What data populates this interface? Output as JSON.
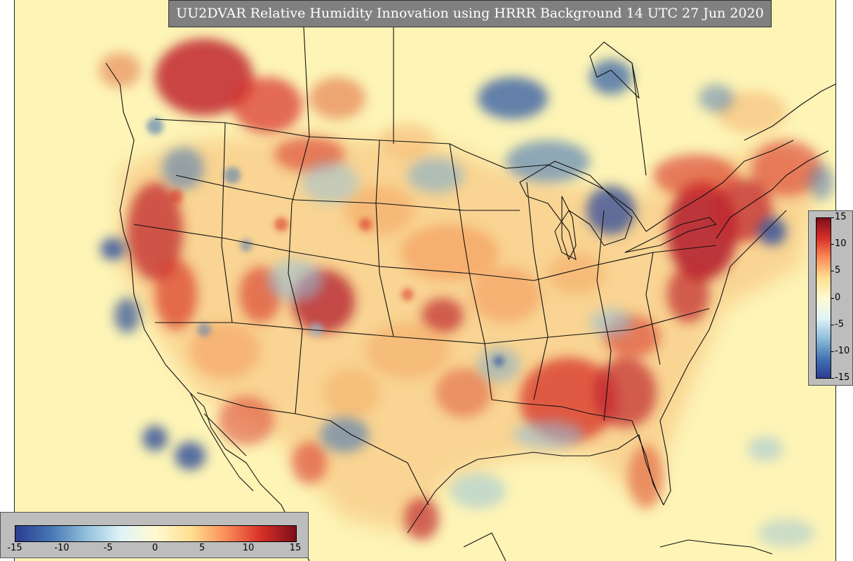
{
  "title": "UU2DVAR Relative Humidity Innovation using HRRR Background 14 UTC 27 Jun 2020",
  "colorbar": {
    "min": -15,
    "max": 15,
    "ticks_vertical": [
      "15",
      "10",
      "5",
      "0",
      "-5",
      "-10",
      "-15"
    ],
    "ticks_horizontal": [
      "-15",
      "-10",
      "-5",
      "0",
      "5",
      "10",
      "15"
    ],
    "colors": [
      "#2b3c8f",
      "#4575b4",
      "#91bfdb",
      "#e0f3f8",
      "#fffad0",
      "#fee090",
      "#fc8d59",
      "#d73027",
      "#7f0d1a"
    ]
  },
  "map": {
    "background_color": "#fdf4b6",
    "border_color": "#111111"
  }
}
